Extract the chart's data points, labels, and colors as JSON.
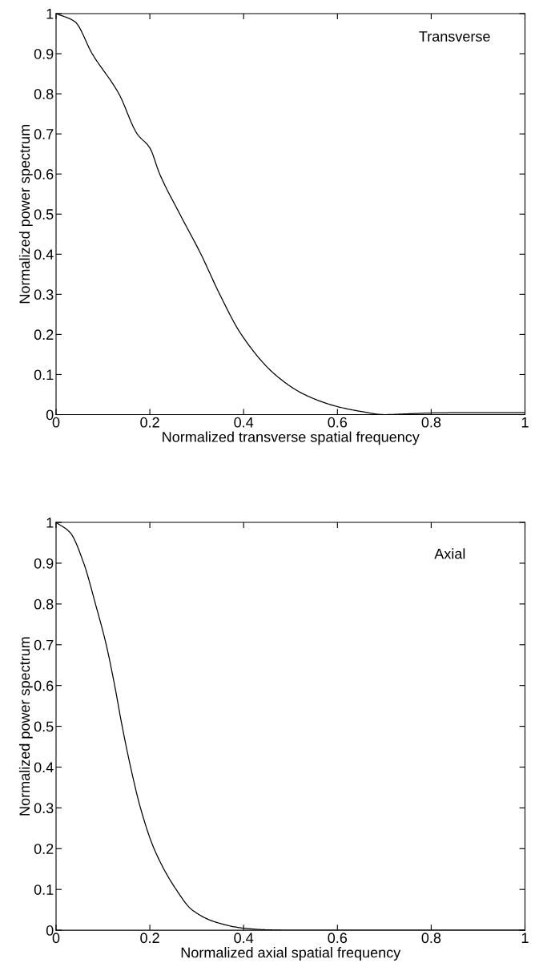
{
  "chart_data": [
    {
      "type": "line",
      "xlabel": "Normalized transverse spatial frequency",
      "ylabel": "Normalized power spectrum",
      "annotations": [
        "Transverse"
      ],
      "series": [
        {
          "color": "#000000",
          "x": [
            0,
            0.04,
            0.077,
            0.134,
            0.173,
            0.2,
            0.221,
            0.264,
            0.309,
            0.349,
            0.395,
            0.467,
            0.53,
            0.6,
            0.65,
            0.7,
            0.75,
            0.8,
            0.9,
            1.0
          ],
          "values": [
            1,
            0.98,
            0.9,
            0.8,
            0.7,
            0.665,
            0.6,
            0.5,
            0.4,
            0.3,
            0.2,
            0.1,
            0.05,
            0.02,
            0.008,
            0,
            0.002,
            0.004,
            0.005,
            0.005
          ]
        }
      ],
      "xlim": [
        0,
        1
      ],
      "ylim": [
        0,
        1
      ],
      "xticks": [
        0,
        0.2,
        0.4,
        0.6,
        0.8,
        1
      ],
      "yticks": [
        0,
        0.1,
        0.2,
        0.3,
        0.4,
        0.5,
        0.6,
        0.7,
        0.8,
        0.9,
        1
      ],
      "marker": "none",
      "line_style": "solid"
    },
    {
      "type": "line",
      "xlabel": "Normalized axial spatial frequency",
      "ylabel": "Normalized power spectrum",
      "annotations": [
        "Axial"
      ],
      "series": [
        {
          "color": "#000000",
          "x": [
            0,
            0.03,
            0.059,
            0.084,
            0.107,
            0.125,
            0.141,
            0.159,
            0.18,
            0.209,
            0.256,
            0.29,
            0.34,
            0.4,
            0.45,
            0.5,
            0.6,
            0.8,
            1.0
          ],
          "values": [
            1,
            0.975,
            0.9,
            0.8,
            0.7,
            0.6,
            0.5,
            0.4,
            0.3,
            0.2,
            0.1,
            0.05,
            0.02,
            0.005,
            0.001,
            0,
            0,
            0,
            0
          ]
        }
      ],
      "xlim": [
        0,
        1
      ],
      "ylim": [
        0,
        1
      ],
      "xticks": [
        0,
        0.2,
        0.4,
        0.6,
        0.8,
        1
      ],
      "yticks": [
        0,
        0.1,
        0.2,
        0.3,
        0.4,
        0.5,
        0.6,
        0.7,
        0.8,
        0.9,
        1
      ],
      "marker": "none",
      "line_style": "solid"
    }
  ]
}
